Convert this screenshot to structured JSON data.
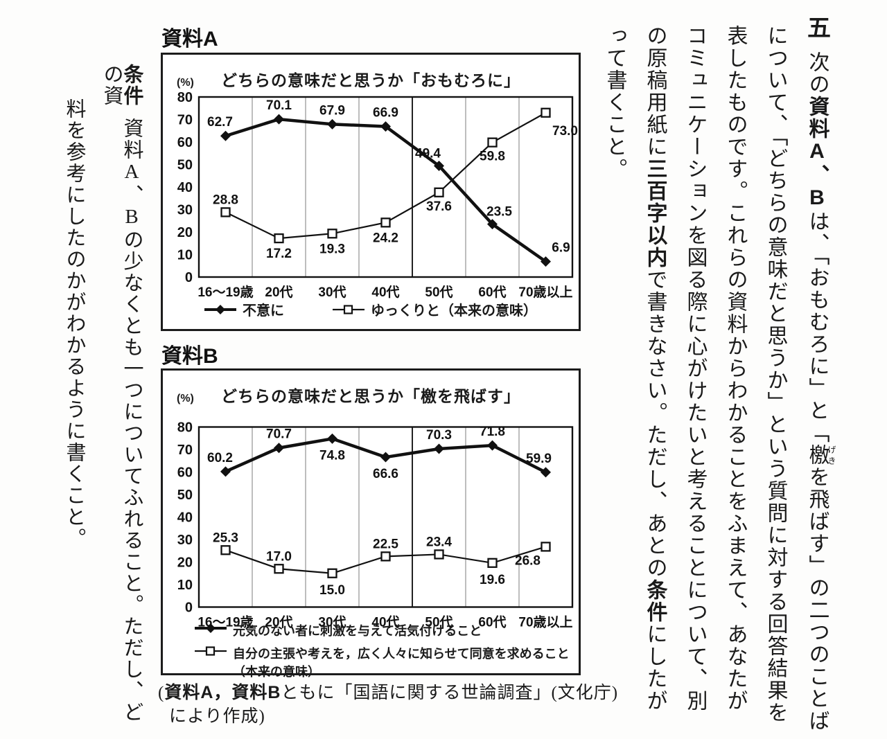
{
  "right_text": {
    "problem_number": "五",
    "col1": {
      "pre": "次の",
      "bold": "資料A、B",
      "mid": "は、「おもむろに」と「",
      "ruby_base": "檄",
      "ruby_text": "げき",
      "post": "を飛ばす」の二つのことば"
    },
    "col2": "について、「どちらの意味だと思うか」という質問に対する回答結果を",
    "col3": "表したものです。これらの資料からわかることをふまえて、あなたが",
    "col4": "コミュニケーションを図る際に心がけたいと考えることについて、別",
    "col5": {
      "p1": "の原稿用紙に",
      "b1": "三百字以内",
      "p2": "で書きなさい。ただし、あとの",
      "b2": "条件",
      "p3": "にしたが"
    },
    "col6": "って書くこと。"
  },
  "conditions": {
    "heading": "条件",
    "col1": "資料A、Bの少なくとも一つについてふれること。ただし、どの資",
    "col2": "料を参考にしたのかがわかるように書くこと。"
  },
  "source_note": {
    "p1": "(",
    "b1": "資料A，資料B",
    "p2": "ともに「国語に関する世論調査」(文化庁)",
    "line2": "により作成)"
  },
  "chart_data": [
    {
      "type": "line",
      "label": "資料A",
      "title": "どちらの意味だと思うか「おもむろに」",
      "unit": "(%)",
      "categories": [
        "16～19歳",
        "20代",
        "30代",
        "40代",
        "50代",
        "60代",
        "70歳以上"
      ],
      "ylim": [
        0,
        80
      ],
      "yticks": [
        0,
        10,
        20,
        30,
        40,
        50,
        60,
        70,
        80
      ],
      "grid": "vertical-category-boundaries, middle boundary emphasized",
      "legend_position": "bottom-center",
      "series": [
        {
          "name": "不意に",
          "marker": "filled-diamond",
          "line_width": 4.5,
          "values": [
            62.7,
            70.1,
            67.9,
            66.9,
            49.4,
            23.5,
            6.9
          ],
          "label_offsets": [
            [
              -8,
              -14
            ],
            [
              0,
              -14
            ],
            [
              0,
              -14
            ],
            [
              0,
              -14
            ],
            [
              -16,
              -12
            ],
            [
              10,
              -12
            ],
            [
              22,
              -14
            ]
          ]
        },
        {
          "name": "ゆっくりと（本来の意味）",
          "marker": "open-square",
          "line_width": 2.2,
          "values": [
            28.8,
            17.2,
            19.3,
            24.2,
            37.6,
            59.8,
            73.0
          ],
          "label_offsets": [
            [
              0,
              -12
            ],
            [
              0,
              28
            ],
            [
              0,
              28
            ],
            [
              0,
              28
            ],
            [
              0,
              26
            ],
            [
              0,
              26
            ],
            [
              28,
              32
            ]
          ]
        }
      ]
    },
    {
      "type": "line",
      "label": "資料B",
      "title": "どちらの意味だと思うか「檄を飛ばす」",
      "unit": "(%)",
      "categories": [
        "16～19歳",
        "20代",
        "30代",
        "40代",
        "50代",
        "60代",
        "70歳以上"
      ],
      "ylim": [
        0,
        80
      ],
      "yticks": [
        0,
        10,
        20,
        30,
        40,
        50,
        60,
        70,
        80
      ],
      "grid": "vertical-category-boundaries, middle boundary emphasized",
      "legend_position": "bottom-left",
      "series": [
        {
          "name": "元気のない者に刺激を与えて活気付けること",
          "marker": "filled-diamond",
          "line_width": 4.5,
          "values": [
            60.2,
            70.7,
            74.8,
            66.6,
            70.3,
            71.8,
            59.9
          ],
          "label_offsets": [
            [
              -8,
              -14
            ],
            [
              0,
              -14
            ],
            [
              0,
              30
            ],
            [
              0,
              30
            ],
            [
              0,
              -14
            ],
            [
              0,
              -14
            ],
            [
              -10,
              -14
            ]
          ]
        },
        {
          "name": "自分の主張や考えを，広く人々に知らせて同意を求めること",
          "name_line2": "（本来の意味）",
          "marker": "open-square",
          "line_width": 2.2,
          "values": [
            25.3,
            17.0,
            15.0,
            22.5,
            23.4,
            19.6,
            26.8
          ],
          "label_offsets": [
            [
              0,
              -12
            ],
            [
              0,
              -12
            ],
            [
              0,
              30
            ],
            [
              0,
              -12
            ],
            [
              0,
              -12
            ],
            [
              0,
              30
            ],
            [
              -26,
              26
            ]
          ]
        }
      ]
    }
  ]
}
